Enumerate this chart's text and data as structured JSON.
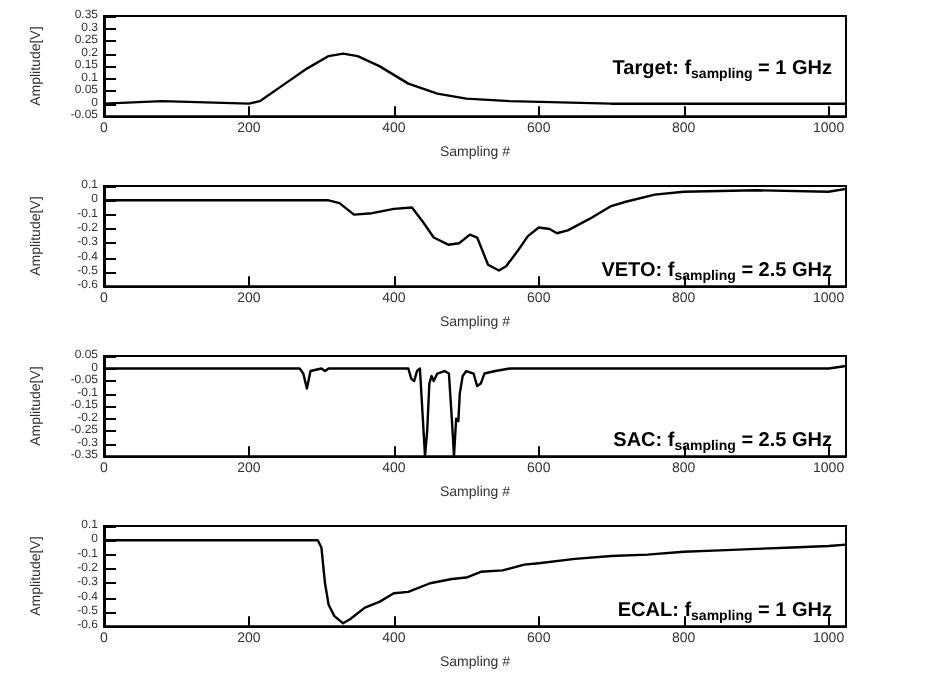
{
  "chart_data": [
    {
      "type": "line",
      "xlabel": "Sampling #",
      "ylabel": "Amplitude[V]",
      "annotations": [
        "Target: f$_{sampling}$ = 1 GHz"
      ],
      "xlim": [
        0,
        1024
      ],
      "xticks": [
        0,
        200,
        400,
        600,
        800,
        1000
      ],
      "ylim": [
        -0.05,
        0.35
      ],
      "yticks": [
        -0.05,
        0,
        0.05,
        0.1,
        0.15,
        0.2,
        0.25,
        0.3,
        0.35
      ],
      "series": [
        {
          "color": "#000000",
          "x": [
            0,
            80,
            200,
            215,
            250,
            280,
            310,
            330,
            350,
            380,
            420,
            460,
            500,
            560,
            700,
            1024
          ],
          "values": [
            0,
            0.01,
            0,
            0.01,
            0.08,
            0.14,
            0.19,
            0.2,
            0.19,
            0.15,
            0.08,
            0.04,
            0.02,
            0.01,
            0,
            0
          ]
        }
      ]
    },
    {
      "type": "line",
      "xlabel": "Sampling #",
      "ylabel": "Amplitude[V]",
      "annotations": [
        "VETO: f$_{sampling}$ = 2.5 GHz"
      ],
      "xlim": [
        0,
        1024
      ],
      "xticks": [
        0,
        200,
        400,
        600,
        800,
        1000
      ],
      "ylim": [
        -0.6,
        0.1
      ],
      "yticks": [
        -0.6,
        -0.5,
        -0.4,
        -0.3,
        -0.2,
        -0.1,
        0,
        0.1
      ],
      "series": [
        {
          "color": "#000000",
          "x": [
            0,
            310,
            325,
            345,
            370,
            400,
            425,
            440,
            455,
            475,
            490,
            505,
            515,
            530,
            545,
            555,
            570,
            585,
            600,
            615,
            625,
            640,
            670,
            700,
            720,
            760,
            800,
            900,
            1000,
            1024
          ],
          "values": [
            0,
            0,
            -0.02,
            -0.1,
            -0.09,
            -0.06,
            -0.05,
            -0.15,
            -0.26,
            -0.31,
            -0.3,
            -0.24,
            -0.26,
            -0.45,
            -0.49,
            -0.46,
            -0.36,
            -0.25,
            -0.19,
            -0.2,
            -0.23,
            -0.21,
            -0.13,
            -0.04,
            -0.01,
            0.04,
            0.06,
            0.07,
            0.06,
            0.08
          ]
        }
      ]
    },
    {
      "type": "line",
      "xlabel": "Sampling #",
      "ylabel": "Amplitude[V]",
      "annotations": [
        "SAC: f$_{sampling}$ = 2.5 GHz"
      ],
      "xlim": [
        0,
        1024
      ],
      "xticks": [
        0,
        200,
        400,
        600,
        800,
        1000
      ],
      "ylim": [
        -0.35,
        0.05
      ],
      "yticks": [
        -0.35,
        -0.3,
        -0.25,
        -0.2,
        -0.15,
        -0.1,
        -0.05,
        0,
        0.05
      ],
      "series": [
        {
          "color": "#000000",
          "x": [
            0,
            270,
            275,
            280,
            285,
            300,
            305,
            310,
            420,
            424,
            428,
            432,
            436,
            440,
            443,
            446,
            449,
            452,
            455,
            460,
            470,
            476,
            480,
            483,
            486,
            489,
            491,
            495,
            500,
            510,
            515,
            520,
            525,
            540,
            560,
            600,
            1000,
            1024
          ],
          "values": [
            0,
            0,
            -0.02,
            -0.08,
            -0.01,
            0,
            -0.01,
            0,
            0,
            -0.04,
            -0.05,
            -0.01,
            0,
            -0.2,
            -0.35,
            -0.25,
            -0.06,
            -0.03,
            -0.05,
            -0.02,
            -0.01,
            -0.02,
            -0.2,
            -0.35,
            -0.2,
            -0.21,
            -0.1,
            -0.03,
            -0.01,
            -0.02,
            -0.07,
            -0.06,
            -0.02,
            -0.01,
            0,
            0,
            0,
            0.01
          ]
        }
      ]
    },
    {
      "type": "line",
      "xlabel": "Sampling #",
      "ylabel": "Amplitude[V]",
      "annotations": [
        "ECAL: f$_{sampling}$ = 1 GHz"
      ],
      "xlim": [
        0,
        1024
      ],
      "xticks": [
        0,
        200,
        400,
        600,
        800,
        1000
      ],
      "ylim": [
        -0.6,
        0.1
      ],
      "yticks": [
        -0.6,
        -0.5,
        -0.4,
        -0.3,
        -0.2,
        -0.1,
        0,
        0.1
      ],
      "series": [
        {
          "color": "#000000",
          "x": [
            0,
            295,
            300,
            305,
            310,
            318,
            330,
            340,
            360,
            380,
            400,
            420,
            450,
            480,
            500,
            520,
            550,
            580,
            600,
            650,
            700,
            750,
            800,
            850,
            900,
            950,
            1000,
            1024
          ],
          "values": [
            0,
            0,
            -0.05,
            -0.3,
            -0.45,
            -0.53,
            -0.58,
            -0.55,
            -0.47,
            -0.43,
            -0.37,
            -0.36,
            -0.3,
            -0.27,
            -0.26,
            -0.22,
            -0.21,
            -0.17,
            -0.16,
            -0.13,
            -0.11,
            -0.1,
            -0.08,
            -0.07,
            -0.06,
            -0.05,
            -0.04,
            -0.03
          ]
        }
      ]
    }
  ]
}
